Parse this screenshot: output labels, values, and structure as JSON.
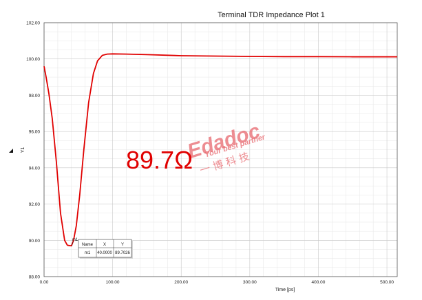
{
  "chart_data": {
    "type": "line",
    "title": "Terminal TDR Impedance Plot 1",
    "xlabel": "Time [ps]",
    "ylabel": "Y1",
    "xlim": [
      0,
      515
    ],
    "ylim": [
      88,
      102
    ],
    "x_ticks": [
      "0.00",
      "100.00",
      "200.00",
      "300.00",
      "400.00",
      "500.00"
    ],
    "y_ticks": [
      "88.00",
      "90.00",
      "92.00",
      "94.00",
      "96.00",
      "98.00",
      "100.00",
      "102.00"
    ],
    "grid": true,
    "series": [
      {
        "color": "#e00000",
        "x": [
          0,
          3,
          7,
          12,
          18,
          24,
          30,
          34,
          37,
          40,
          43,
          47,
          52,
          58,
          65,
          72,
          78,
          85,
          92,
          100,
          120,
          150,
          200,
          250,
          300,
          350,
          400,
          450,
          500,
          515
        ],
        "y": [
          99.6,
          99.0,
          98.1,
          96.7,
          94.3,
          91.5,
          90.0,
          89.73,
          89.71,
          89.7,
          90.0,
          90.8,
          92.5,
          95.0,
          97.6,
          99.2,
          99.9,
          100.2,
          100.27,
          100.28,
          100.27,
          100.24,
          100.18,
          100.16,
          100.14,
          100.13,
          100.13,
          100.12,
          100.12,
          100.12
        ]
      }
    ],
    "marker": {
      "label": "m1",
      "x": 40.0,
      "y": 89.7026,
      "table": {
        "headers": [
          "Name",
          "X",
          "Y"
        ],
        "row": [
          "m1",
          "40.0000",
          "89.7026"
        ]
      }
    },
    "annotation": "89.7Ω"
  },
  "watermark": {
    "brand": "Edadoc",
    "slogan": "Your best partner",
    "chinese": "一 博 科 技"
  }
}
